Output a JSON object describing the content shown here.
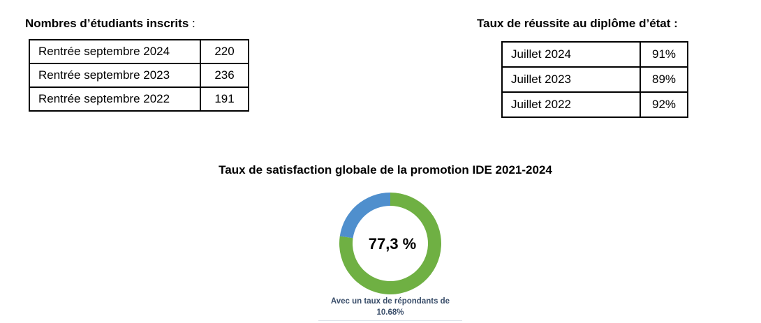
{
  "enrollment": {
    "heading": "Nombres d’étudiants inscrits",
    "colon": " :",
    "rows": [
      {
        "label": "Rentrée septembre 2024",
        "value": "220"
      },
      {
        "label": "Rentrée septembre 2023",
        "value": "236"
      },
      {
        "label": "Rentrée septembre 2022",
        "value": "191"
      }
    ]
  },
  "success": {
    "heading": "Taux de réussite au diplôme d’état :",
    "rows": [
      {
        "label": "Juillet 2024",
        "value": "91%"
      },
      {
        "label": "Juillet 2023",
        "value": "89%"
      },
      {
        "label": "Juillet 2022",
        "value": "92%"
      }
    ]
  },
  "satisfaction": {
    "title": "Taux de satisfaction globale de la promotion IDE 2021-2024",
    "caption": "Avec un taux de répondants de 10.68%"
  },
  "chart_data": {
    "type": "pie",
    "title": "Taux de satisfaction globale de la promotion IDE 2021-2024",
    "center_label": "77,3 %",
    "slices": [
      {
        "value": 77.3,
        "color": "#6fb043"
      },
      {
        "value": 22.7,
        "color": "#4f8fcd"
      }
    ]
  }
}
